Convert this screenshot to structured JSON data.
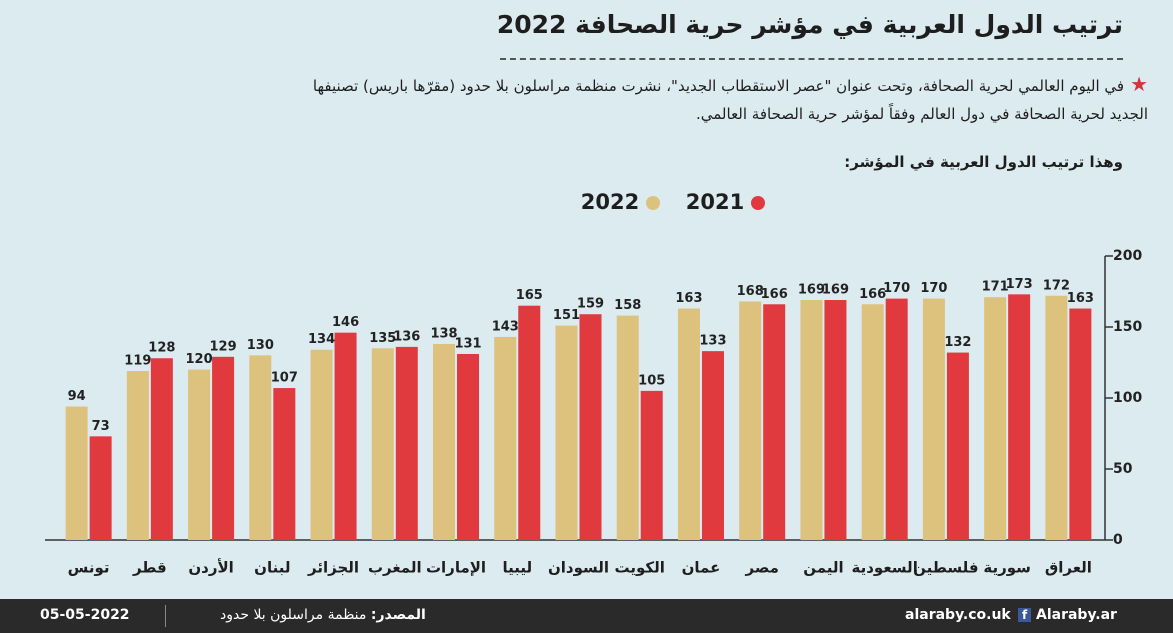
{
  "chart_data": {
    "type": "bar",
    "title": "ترتيب الدول العربية في مؤشر حرية الصحافة 2022",
    "description": "في اليوم العالمي لحرية الصحافة، وتحت عنوان \"عصر الاستقطاب الجديد\"، نشرت منظمة مراسلون بلا حدود (مقرّها باريس) تصنيفها الجديد لحرية الصحافة في دول العالم وفقاً لمؤشر حرية الصحافة العالمي.",
    "intro": "وهذا ترتيب الدول العربية في المؤشر:",
    "categories": [
      "تونس",
      "قطر",
      "الأردن",
      "لبنان",
      "الجزائر",
      "المغرب",
      "الإمارات",
      "ليبيا",
      "السودان",
      "الكويت",
      "عمان",
      "مصر",
      "اليمن",
      "السعودية",
      "فلسطين",
      "سورية",
      "العراق"
    ],
    "series": [
      {
        "name": "2022",
        "color": "#dcc27c",
        "values": [
          94,
          119,
          120,
          130,
          134,
          135,
          138,
          143,
          151,
          158,
          163,
          168,
          169,
          166,
          170,
          171,
          172
        ]
      },
      {
        "name": "2021",
        "color": "#e03a3e",
        "values": [
          73,
          128,
          129,
          107,
          146,
          136,
          131,
          165,
          159,
          105,
          133,
          166,
          169,
          170,
          132,
          173,
          163
        ]
      }
    ],
    "ylim": [
      0,
      200
    ],
    "yticks": [
      0,
      50,
      100,
      150,
      200
    ],
    "y_axis_side": "right"
  },
  "footer": {
    "date": "05-05-2022",
    "source_label": "المصدر:",
    "source": "منظمة مراسلون بلا حدود",
    "site": "alaraby.co.uk",
    "social": "Alaraby.ar"
  }
}
